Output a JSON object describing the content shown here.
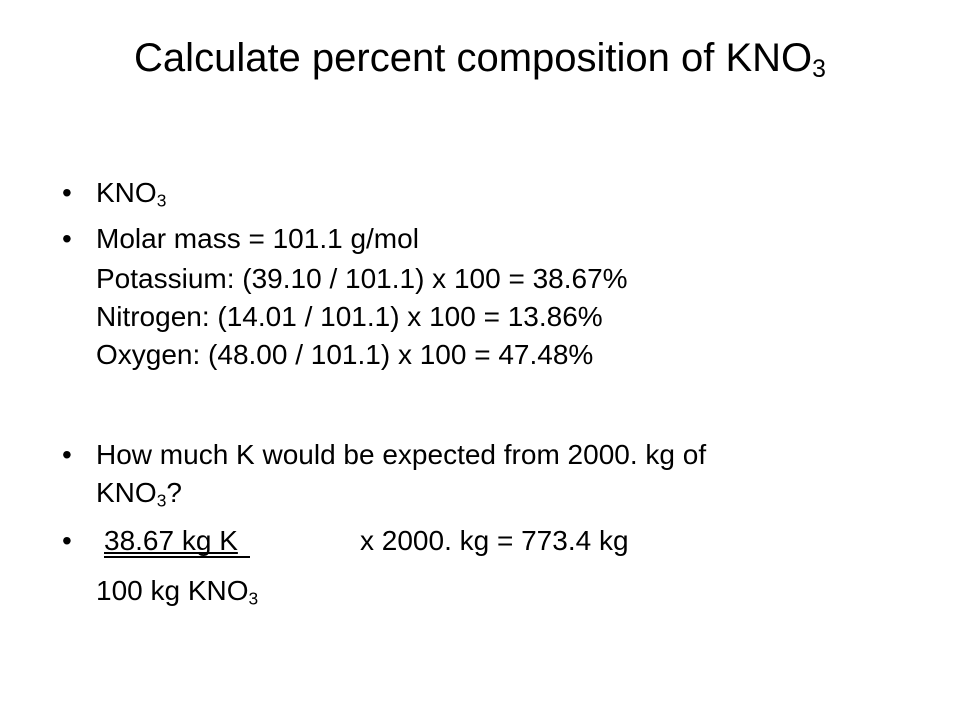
{
  "title": {
    "text": "Calculate percent composition of KNO",
    "sub": "3"
  },
  "bullets": [
    {
      "text": "KNO",
      "sub": "3"
    },
    {
      "lines": [
        "Molar mass = 101.1 g/mol",
        "Potassium: (39.10 / 101.1) x 100 = 38.67%",
        "Nitrogen: (14.01 / 101.1) x 100 = 13.86%",
        "Oxygen: (48.00 / 101.1) x 100 = 47.48%"
      ]
    },
    {
      "text": "How much K would be expected from 2000. kg of",
      "formula": "KNO",
      "sub": "3",
      "tail": "?"
    },
    {
      "numerator": "38.67 kg K",
      "rest": "x 2000. kg = 773.4 kg",
      "denominator": "100 kg KNO",
      "sub": "3"
    }
  ]
}
